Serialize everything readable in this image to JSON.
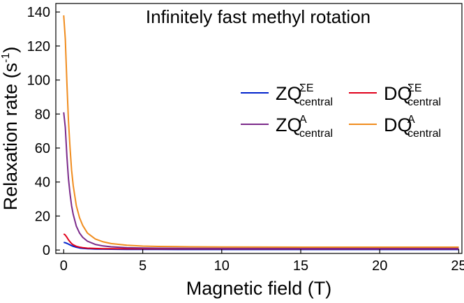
{
  "chart_data": {
    "type": "line",
    "title": "Infinitely fast methyl rotation",
    "xlabel": "Magnetic field (T)",
    "ylabel": {
      "main": "Relaxation rate (s",
      "sup": "-1",
      "end": ")"
    },
    "xlim": [
      -0.5,
      25.2
    ],
    "ylim": [
      -2,
      145
    ],
    "xticks": [
      0,
      5,
      10,
      15,
      20,
      25
    ],
    "yticks": [
      0,
      20,
      40,
      60,
      80,
      100,
      120,
      140
    ],
    "grid": false,
    "legend_position": "right",
    "series": [
      {
        "name": {
          "base": "ZQ",
          "sup": "ΣE",
          "sub": "central"
        },
        "color": "#0022cc",
        "x": [
          0,
          0.1,
          0.2,
          0.3,
          0.4,
          0.5,
          0.6,
          0.8,
          1.0,
          1.2,
          1.5,
          2,
          2.5,
          3,
          4,
          5,
          6,
          8,
          10,
          15,
          20,
          25
        ],
        "y": [
          4.5,
          4.3,
          3.9,
          3.5,
          3.0,
          2.6,
          2.2,
          1.6,
          1.2,
          1.0,
          0.8,
          0.6,
          0.5,
          0.45,
          0.4,
          0.35,
          0.33,
          0.3,
          0.3,
          0.3,
          0.3,
          0.3
        ]
      },
      {
        "name": {
          "base": "DQ",
          "sup": "ΣE",
          "sub": "central"
        },
        "color": "#e0001b",
        "x": [
          0,
          0.1,
          0.2,
          0.3,
          0.4,
          0.5,
          0.6,
          0.8,
          1.0,
          1.2,
          1.5,
          2,
          2.5,
          3,
          4,
          5,
          6,
          8,
          10,
          15,
          20,
          25
        ],
        "y": [
          9.5,
          8.8,
          7.5,
          6.0,
          4.8,
          3.8,
          3.1,
          2.2,
          1.7,
          1.4,
          1.1,
          0.9,
          0.8,
          0.75,
          0.7,
          0.7,
          0.7,
          0.7,
          0.7,
          0.7,
          0.7,
          0.7
        ]
      },
      {
        "name": {
          "base": "ZQ",
          "sup": "A",
          "sub": "central"
        },
        "color": "#7b2a8a",
        "x": [
          0,
          0.1,
          0.2,
          0.3,
          0.4,
          0.5,
          0.6,
          0.8,
          1.0,
          1.2,
          1.5,
          2,
          2.5,
          3,
          4,
          5,
          6,
          8,
          10,
          15,
          20,
          25
        ],
        "y": [
          81,
          72,
          55,
          42,
          33,
          26,
          21,
          14,
          10,
          7.5,
          5.2,
          3.3,
          2.4,
          1.9,
          1.4,
          1.2,
          1.1,
          1.0,
          1.0,
          1.0,
          1.0,
          1.0
        ]
      },
      {
        "name": {
          "base": "DQ",
          "sup": "A",
          "sub": "central"
        },
        "color": "#f08c1e",
        "x": [
          0,
          0.1,
          0.2,
          0.3,
          0.4,
          0.5,
          0.6,
          0.8,
          1.0,
          1.2,
          1.5,
          2,
          2.5,
          3,
          4,
          5,
          6,
          8,
          10,
          15,
          20,
          25
        ],
        "y": [
          138,
          124,
          98,
          76,
          60,
          47,
          38,
          26,
          19,
          14.5,
          10,
          6.5,
          4.8,
          3.8,
          2.8,
          2.3,
          2.1,
          1.9,
          1.8,
          1.7,
          1.7,
          1.7
        ]
      }
    ]
  }
}
